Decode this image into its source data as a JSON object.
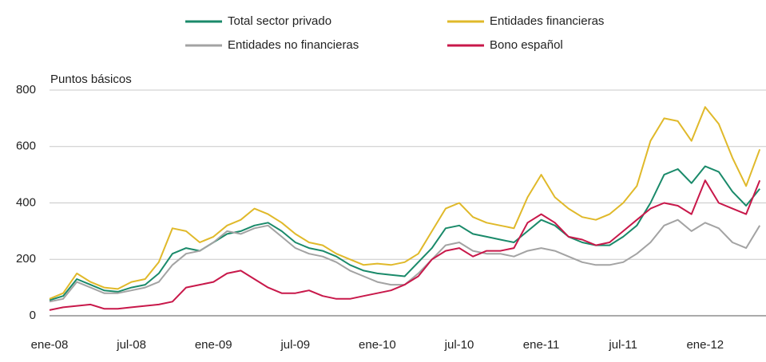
{
  "chart_data": {
    "type": "line",
    "y_label": "Puntos básicos",
    "categories": [
      "ene-08",
      null,
      null,
      null,
      null,
      null,
      "jul-08",
      null,
      null,
      null,
      null,
      null,
      "ene-09",
      null,
      null,
      null,
      null,
      null,
      "jul-09",
      null,
      null,
      null,
      null,
      null,
      "ene-10",
      null,
      null,
      null,
      null,
      null,
      "jul-10",
      null,
      null,
      null,
      null,
      null,
      "ene-11",
      null,
      null,
      null,
      null,
      null,
      "jul-11",
      null,
      null,
      null,
      null,
      null,
      "ene-12",
      null,
      null,
      null,
      null
    ],
    "series": [
      {
        "name": "Total sector privado",
        "color": "#1a8a6a",
        "values": [
          55,
          70,
          130,
          110,
          90,
          85,
          100,
          110,
          150,
          220,
          240,
          230,
          260,
          290,
          300,
          320,
          330,
          300,
          260,
          240,
          230,
          210,
          180,
          160,
          150,
          145,
          140,
          190,
          240,
          310,
          320,
          290,
          280,
          270,
          260,
          300,
          340,
          320,
          280,
          260,
          250,
          250,
          280,
          320,
          400,
          500,
          520,
          470,
          530,
          510,
          440,
          390,
          450
        ]
      },
      {
        "name": "Entidades financieras",
        "color": "#e0b92a",
        "values": [
          60,
          80,
          150,
          120,
          100,
          95,
          120,
          130,
          190,
          310,
          300,
          260,
          280,
          320,
          340,
          380,
          360,
          330,
          290,
          260,
          250,
          220,
          200,
          180,
          185,
          180,
          190,
          220,
          300,
          380,
          400,
          350,
          330,
          320,
          310,
          420,
          500,
          420,
          380,
          350,
          340,
          360,
          400,
          460,
          620,
          700,
          690,
          620,
          740,
          680,
          560,
          460,
          590
        ]
      },
      {
        "name": "Entidades no financieras",
        "color": "#a3a3a3",
        "values": [
          50,
          60,
          120,
          100,
          80,
          80,
          90,
          100,
          120,
          180,
          220,
          230,
          260,
          300,
          290,
          310,
          320,
          280,
          240,
          220,
          210,
          190,
          160,
          140,
          120,
          110,
          110,
          150,
          200,
          250,
          260,
          230,
          220,
          220,
          210,
          230,
          240,
          230,
          210,
          190,
          180,
          180,
          190,
          220,
          260,
          320,
          340,
          300,
          330,
          310,
          260,
          240,
          320
        ]
      },
      {
        "name": "Bono español",
        "color": "#c8184a",
        "values": [
          20,
          30,
          35,
          40,
          25,
          25,
          30,
          35,
          40,
          50,
          100,
          110,
          120,
          150,
          160,
          130,
          100,
          80,
          80,
          90,
          70,
          60,
          60,
          70,
          80,
          90,
          110,
          140,
          200,
          230,
          240,
          210,
          230,
          230,
          240,
          330,
          360,
          330,
          280,
          270,
          250,
          260,
          300,
          340,
          380,
          400,
          390,
          360,
          480,
          400,
          380,
          360,
          480
        ]
      }
    ],
    "ylim": [
      0,
      800
    ],
    "yticks": [
      0,
      200,
      400,
      600,
      800
    ],
    "grid": true
  }
}
